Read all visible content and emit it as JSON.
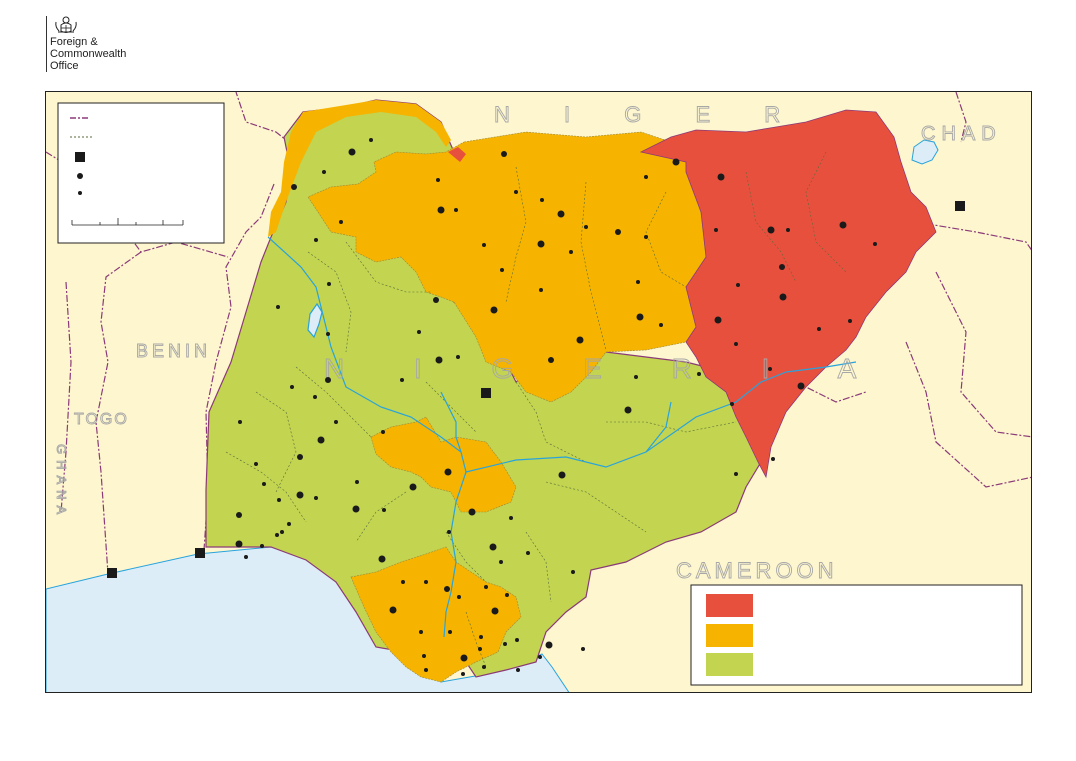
{
  "logo": {
    "organisation": "Foreign &\nCommonwealth\nOffice",
    "crest_icon": "royal-coat-of-arms-icon"
  },
  "map": {
    "country_labels": {
      "niger": "N I G E R",
      "chad": "CHAD",
      "benin": "BENIN",
      "togo": "TOGO",
      "ghana": "GHANA",
      "nigeria": "N I G E R I A",
      "cameroon": "CAMEROON"
    },
    "colors": {
      "sea": "#dcedf7",
      "land": "#fdf6cf",
      "advise_against_all_travel": "#e8503e",
      "advise_against_all_but_essential_travel": "#f6b400",
      "see_travel_advice": "#c2d450",
      "rivers": "#29a3dc",
      "international_border": "#8b3a78"
    },
    "legend_symbols": [
      "international-boundary-line",
      "state-boundary-line",
      "capital-city-square",
      "major-city-dot",
      "town-dot",
      "scale-bar"
    ],
    "zone_legend_swatches": [
      "red-zone-swatch",
      "amber-zone-swatch",
      "green-zone-swatch"
    ]
  }
}
